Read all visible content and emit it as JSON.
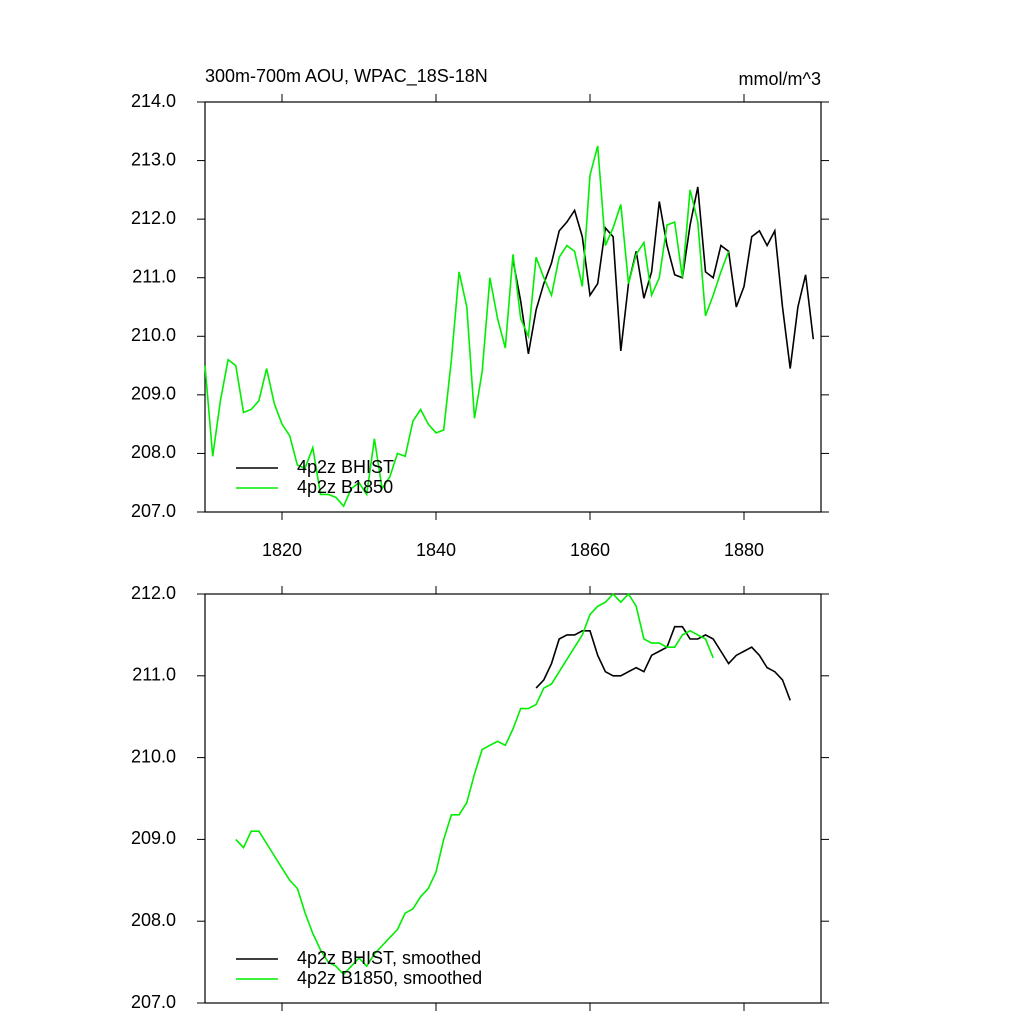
{
  "chart_data": [
    {
      "type": "line",
      "title": "300m-700m AOU, WPAC_18S-18N",
      "y_label": "mmol/m^3",
      "xlim": [
        1810,
        1890
      ],
      "xticks": [
        1820,
        1840,
        1860,
        1880
      ],
      "ylim": [
        207,
        214
      ],
      "yticks": [
        {
          "value": 207,
          "label": "207.0"
        },
        {
          "value": 208,
          "label": "208.0"
        },
        {
          "value": 209,
          "label": "209.0"
        },
        {
          "value": 210,
          "label": "210.0"
        },
        {
          "value": 211,
          "label": "211.0"
        },
        {
          "value": 212,
          "label": "212.0"
        },
        {
          "value": 213,
          "label": "213.0"
        },
        {
          "value": 214,
          "label": "214.0"
        }
      ],
      "legend": "lower left",
      "series": [
        {
          "name": "4p2z BHIST",
          "color": "#000000",
          "x": [
            1850,
            1851,
            1852,
            1853,
            1854,
            1855,
            1856,
            1857,
            1858,
            1859,
            1860,
            1861,
            1862,
            1863,
            1864,
            1865,
            1866,
            1867,
            1868,
            1869,
            1870,
            1871,
            1872,
            1873,
            1874,
            1875,
            1876,
            1877,
            1878,
            1879,
            1880,
            1881,
            1882,
            1883,
            1884,
            1885,
            1886,
            1887,
            1888,
            1889
          ],
          "values": [
            211.3,
            210.6,
            209.7,
            210.45,
            210.9,
            211.25,
            211.8,
            211.95,
            212.15,
            211.7,
            210.7,
            210.9,
            211.85,
            211.7,
            209.75,
            210.9,
            211.45,
            210.65,
            211.1,
            212.3,
            211.55,
            211.05,
            211.0,
            211.9,
            212.55,
            211.1,
            211.0,
            211.55,
            211.45,
            210.5,
            210.85,
            211.7,
            211.8,
            211.55,
            211.8,
            210.5,
            209.45,
            210.5,
            211.05,
            209.95
          ]
        },
        {
          "name": "4p2z B1850",
          "color": "#00ee00",
          "x": [
            1810,
            1811,
            1812,
            1813,
            1814,
            1815,
            1816,
            1817,
            1818,
            1819,
            1820,
            1821,
            1822,
            1823,
            1824,
            1825,
            1826,
            1827,
            1828,
            1829,
            1830,
            1831,
            1832,
            1833,
            1834,
            1835,
            1836,
            1837,
            1838,
            1839,
            1840,
            1841,
            1842,
            1843,
            1844,
            1845,
            1846,
            1847,
            1848,
            1849,
            1850,
            1851,
            1852,
            1853,
            1854,
            1855,
            1856,
            1857,
            1858,
            1859,
            1860,
            1861,
            1862,
            1863,
            1864,
            1865,
            1866,
            1867,
            1868,
            1869,
            1870,
            1871,
            1872,
            1873,
            1874,
            1875,
            1876,
            1877,
            1878
          ],
          "values": [
            209.5,
            207.95,
            208.9,
            209.6,
            209.5,
            208.7,
            208.75,
            208.9,
            209.45,
            208.85,
            208.5,
            208.3,
            207.8,
            207.75,
            208.1,
            207.3,
            207.3,
            207.25,
            207.1,
            207.4,
            207.5,
            207.3,
            208.25,
            207.4,
            207.6,
            208.0,
            207.95,
            208.55,
            208.75,
            208.5,
            208.35,
            208.4,
            209.6,
            211.1,
            210.5,
            208.6,
            209.4,
            211.0,
            210.3,
            209.8,
            211.4,
            210.3,
            210.0,
            211.35,
            211.0,
            210.7,
            211.35,
            211.55,
            211.45,
            210.85,
            212.75,
            213.25,
            211.55,
            211.85,
            212.25,
            210.9,
            211.4,
            211.6,
            210.7,
            211.0,
            211.9,
            211.95,
            211.0,
            212.5,
            211.95,
            210.35,
            210.7,
            211.1,
            211.45
          ]
        }
      ]
    },
    {
      "type": "line",
      "xlim": [
        1810,
        1890
      ],
      "ylim": [
        207,
        212
      ],
      "yticks": [
        {
          "value": 207,
          "label": "207.0"
        },
        {
          "value": 208,
          "label": "208.0"
        },
        {
          "value": 209,
          "label": "209.0"
        },
        {
          "value": 210,
          "label": "210.0"
        },
        {
          "value": 211,
          "label": "211.0"
        },
        {
          "value": 212,
          "label": "212.0"
        }
      ],
      "legend": "lower left",
      "series": [
        {
          "name": "4p2z BHIST, smoothed",
          "color": "#000000",
          "x": [
            1853,
            1854,
            1855,
            1856,
            1857,
            1858,
            1859,
            1860,
            1861,
            1862,
            1863,
            1864,
            1865,
            1866,
            1867,
            1868,
            1869,
            1870,
            1871,
            1872,
            1873,
            1874,
            1875,
            1876,
            1877,
            1878,
            1879,
            1880,
            1881,
            1882,
            1883,
            1884,
            1885,
            1886
          ],
          "values": [
            210.85,
            210.95,
            211.15,
            211.45,
            211.5,
            211.5,
            211.55,
            211.55,
            211.25,
            211.05,
            211.0,
            211.0,
            211.05,
            211.1,
            211.05,
            211.25,
            211.3,
            211.35,
            211.6,
            211.6,
            211.45,
            211.45,
            211.5,
            211.45,
            211.3,
            211.15,
            211.25,
            211.3,
            211.35,
            211.25,
            211.1,
            211.05,
            210.95,
            210.7
          ]
        },
        {
          "name": "4p2z B1850, smoothed",
          "color": "#00ee00",
          "x": [
            1814,
            1815,
            1816,
            1817,
            1818,
            1819,
            1820,
            1821,
            1822,
            1823,
            1824,
            1825,
            1826,
            1827,
            1828,
            1829,
            1830,
            1831,
            1832,
            1833,
            1834,
            1835,
            1836,
            1837,
            1838,
            1839,
            1840,
            1841,
            1842,
            1843,
            1844,
            1845,
            1846,
            1847,
            1848,
            1849,
            1850,
            1851,
            1852,
            1853,
            1854,
            1855,
            1856,
            1857,
            1858,
            1859,
            1860,
            1861,
            1862,
            1863,
            1864,
            1865,
            1866,
            1867,
            1868,
            1869,
            1870,
            1871,
            1872,
            1873,
            1874,
            1875,
            1876
          ],
          "values": [
            209.0,
            208.9,
            209.1,
            209.1,
            208.95,
            208.8,
            208.65,
            208.5,
            208.4,
            208.1,
            207.85,
            207.65,
            207.5,
            207.45,
            207.35,
            207.45,
            207.55,
            207.45,
            207.6,
            207.7,
            207.8,
            207.9,
            208.1,
            208.15,
            208.3,
            208.4,
            208.6,
            209.0,
            209.3,
            209.3,
            209.45,
            209.8,
            210.1,
            210.15,
            210.2,
            210.15,
            210.35,
            210.6,
            210.6,
            210.65,
            210.85,
            210.9,
            211.05,
            211.2,
            211.35,
            211.5,
            211.75,
            211.85,
            211.9,
            212.0,
            211.9,
            212.0,
            211.85,
            211.45,
            211.4,
            211.4,
            211.35,
            211.35,
            211.5,
            211.55,
            211.5,
            211.45,
            211.22
          ]
        }
      ]
    }
  ]
}
